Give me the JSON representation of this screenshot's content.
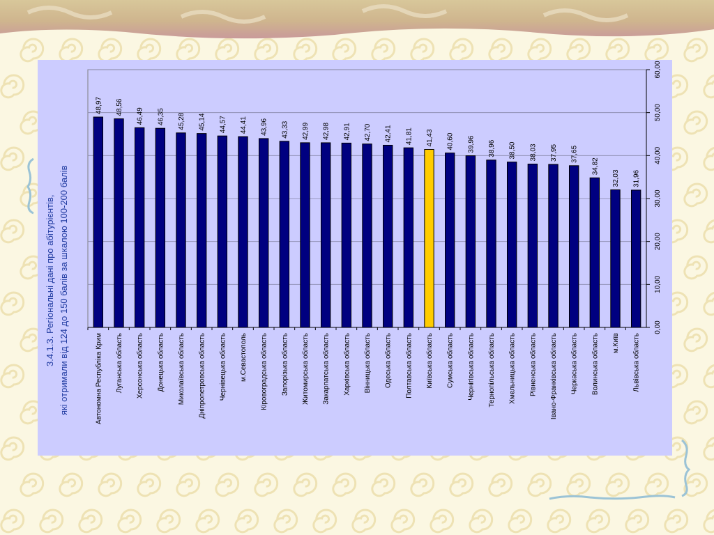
{
  "chart_data": {
    "type": "bar",
    "title_lines": [
      "3.4.1.3. Регіональні дані про абітурієнтів,",
      "які отримали від 124 до 150 балів за шкалою 100-200 балів"
    ],
    "categories": [
      "Автономна Республіка Крим",
      "Луганська область",
      "Херсонська область",
      "Донецька область",
      "Миколаївська область",
      "Дніпропетровська область",
      "Чернівецька область",
      "м.Севастополь",
      "Кіровоградська область",
      "Запорізька область",
      "Житомирська область",
      "Закарпатська область",
      "Харківська область",
      "Вінницька область",
      "Одеська область",
      "Полтавська область",
      "Київська область",
      "Сумська область",
      "Чернігівська область",
      "Тернопільська область",
      "Хмельницька область",
      "Рівненська область",
      "Івано-Франківська область",
      "Черкаська область",
      "Волинська область",
      "м.Київ",
      "Львівська область"
    ],
    "values": [
      48.97,
      48.56,
      46.49,
      46.35,
      45.28,
      45.14,
      44.57,
      44.41,
      43.96,
      43.33,
      42.99,
      42.98,
      42.91,
      42.7,
      42.41,
      41.81,
      41.43,
      40.6,
      39.96,
      38.96,
      38.5,
      38.03,
      37.95,
      37.65,
      34.82,
      32.03,
      31.96
    ],
    "value_labels": [
      "48,97",
      "48,56",
      "46,49",
      "46,35",
      "45,28",
      "45,14",
      "44,57",
      "44,41",
      "43,96",
      "43,33",
      "42,99",
      "42,98",
      "42,91",
      "42,70",
      "42,41",
      "41,81",
      "41,43",
      "40,60",
      "39,96",
      "38,96",
      "38,50",
      "38,03",
      "37,95",
      "37,65",
      "34,82",
      "32,03",
      "31,96"
    ],
    "highlight_category": "Київська область",
    "ylim": [
      0,
      60
    ],
    "y_ticks": [
      0,
      10,
      20,
      30,
      40,
      50,
      60
    ],
    "y_tick_labels": [
      "0,00",
      "10,00",
      "20,00",
      "30,00",
      "40,00",
      "50,00",
      "60,00"
    ],
    "grid": true,
    "colors": {
      "bar": "#000080",
      "highlight": "#ffcc00",
      "plot_bg": "#ccccff",
      "grid": "#8888aa",
      "title": "#1f3aa0"
    }
  }
}
